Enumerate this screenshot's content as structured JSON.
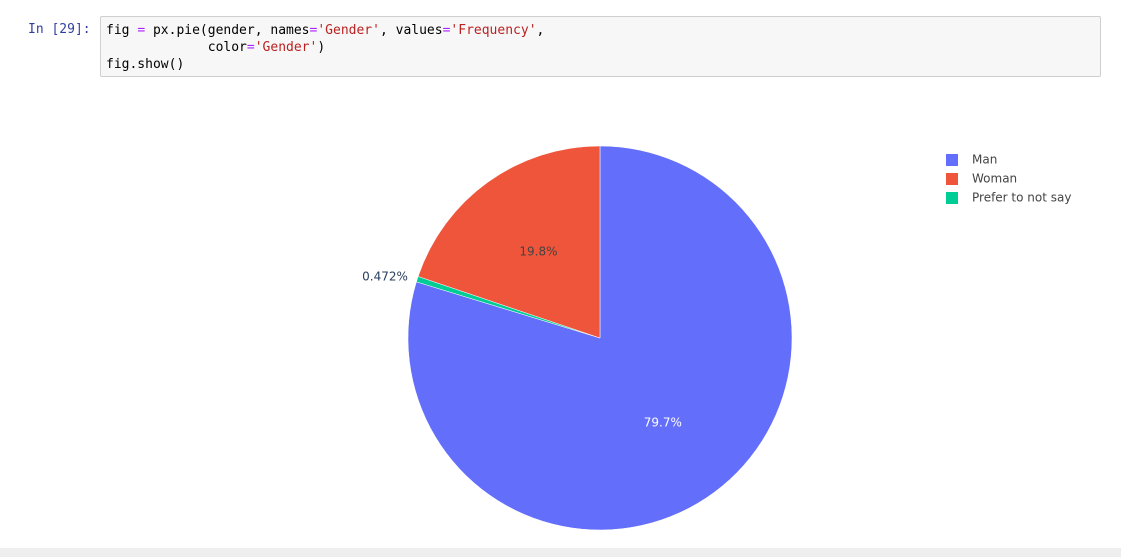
{
  "prompt": "In [29]:",
  "code": {
    "lines": [
      [
        {
          "text": "fig ",
          "color": "#000000"
        },
        {
          "text": "=",
          "color": "#aa22ff"
        },
        {
          "text": " px.pie(gender, names",
          "color": "#000000"
        },
        {
          "text": "=",
          "color": "#aa22ff"
        },
        {
          "text": "'Gender'",
          "color": "#ba2121"
        },
        {
          "text": ", values",
          "color": "#000000"
        },
        {
          "text": "=",
          "color": "#aa22ff"
        },
        {
          "text": "'Frequency'",
          "color": "#ba2121"
        },
        {
          "text": ",",
          "color": "#000000"
        }
      ],
      [
        {
          "text": "             color",
          "color": "#000000"
        },
        {
          "text": "=",
          "color": "#aa22ff"
        },
        {
          "text": "'Gender'",
          "color": "#ba2121"
        },
        {
          "text": ")",
          "color": "#000000"
        }
      ],
      [
        {
          "text": "fig.show()",
          "color": "#000000"
        }
      ]
    ]
  },
  "chart_data": {
    "type": "pie",
    "categories": [
      "Man",
      "Woman",
      "Prefer to not say"
    ],
    "values": [
      79.7,
      19.8,
      0.472
    ],
    "value_labels": [
      "79.7%",
      "19.8%",
      "0.472%"
    ],
    "colors": [
      "#636efa",
      "#ef553b",
      "#00cc96"
    ],
    "legend": "top-right"
  }
}
